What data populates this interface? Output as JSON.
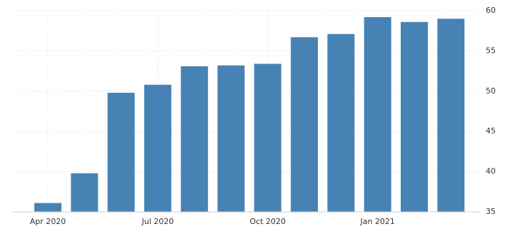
{
  "chart_data": {
    "type": "bar",
    "categories": [
      "Apr 2020",
      null,
      null,
      "Jul 2020",
      null,
      null,
      "Oct 2020",
      null,
      null,
      "Jan 2021",
      null,
      null
    ],
    "values": [
      36.1,
      39.8,
      49.8,
      50.8,
      53.1,
      53.2,
      53.4,
      56.7,
      57.1,
      59.2,
      58.6,
      59.0
    ],
    "color": "#4682b4",
    "ylim": [
      35,
      60
    ],
    "yticks": [
      35,
      40,
      45,
      50,
      55,
      60
    ],
    "grid": true
  }
}
